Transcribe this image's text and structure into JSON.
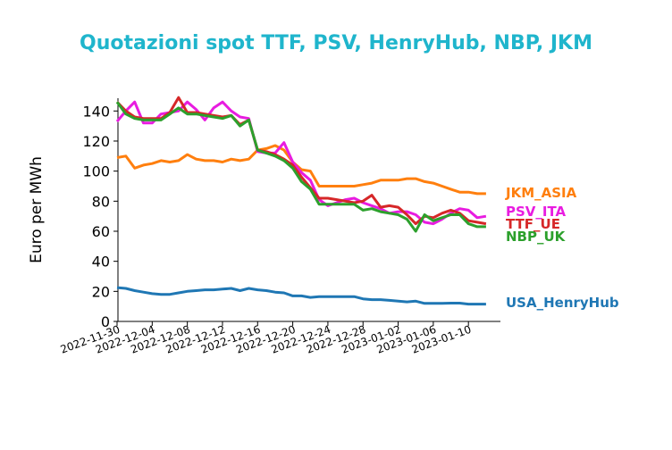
{
  "chart_data": {
    "type": "line",
    "title": "Quotazioni spot TTF, PSV, HenryHub, NBP, JKM",
    "ylabel": "Euro per MWh",
    "xlabel": "",
    "ylim": [
      0,
      150
    ],
    "yticks": [
      0,
      20,
      40,
      60,
      80,
      100,
      120,
      140
    ],
    "xtick_labels": [
      "2022-11-30",
      "2022-12-04",
      "2022-12-08",
      "2022-12-12",
      "2022-12-16",
      "2022-12-20",
      "2022-12-24",
      "2022-12-28",
      "2023-01-02",
      "2023-01-06",
      "2023-01-10"
    ],
    "xtick_days": [
      0,
      4,
      8,
      12,
      16,
      20,
      24,
      28,
      32,
      36,
      40
    ],
    "xlim_days": [
      0,
      44
    ],
    "x_start_date": "2022-11-30",
    "grid": false,
    "legend": "inline-right",
    "series": [
      {
        "name": "JKM_ASIA",
        "color": "#ff7f0e",
        "x": [
          0,
          1,
          2,
          3,
          4,
          5,
          6,
          7,
          8,
          9,
          10,
          11,
          12,
          13,
          14,
          15,
          16,
          17,
          18,
          19,
          20,
          21,
          22,
          23,
          24,
          25,
          26,
          27,
          28,
          29,
          30,
          31,
          32,
          33,
          34,
          35,
          36,
          37,
          38,
          39,
          40,
          41,
          42
        ],
        "y": [
          109,
          110,
          102,
          104,
          105,
          107,
          106,
          107,
          111,
          108,
          107,
          107,
          106,
          108,
          107,
          108,
          114,
          115,
          117,
          114,
          106,
          101,
          100,
          90,
          90,
          90,
          90,
          90,
          91,
          92,
          94,
          94,
          94,
          95,
          95,
          93,
          92,
          90,
          88,
          86,
          86,
          85,
          85
        ]
      },
      {
        "name": "PSV_ITA",
        "color": "#e81ce0",
        "x": [
          0,
          1,
          2,
          3,
          4,
          5,
          6,
          7,
          8,
          9,
          10,
          11,
          12,
          13,
          14,
          15,
          16,
          17,
          18,
          19,
          20,
          21,
          22,
          23,
          24,
          25,
          26,
          27,
          28,
          29,
          30,
          31,
          32,
          33,
          34,
          35,
          36,
          37,
          38,
          39,
          40,
          41,
          42
        ],
        "y": [
          133,
          140,
          146,
          132,
          132,
          138,
          139,
          140,
          146,
          141,
          134,
          142,
          146,
          140,
          136,
          135,
          113,
          112,
          112,
          119,
          106,
          99,
          94,
          81,
          77,
          79,
          81,
          82,
          79,
          77,
          75,
          72,
          73,
          73,
          71,
          66,
          65,
          68,
          72,
          75,
          74,
          69,
          70
        ]
      },
      {
        "name": "TTF_UE",
        "color": "#d62728",
        "x": [
          0,
          1,
          2,
          3,
          4,
          5,
          6,
          7,
          8,
          9,
          10,
          11,
          12,
          13,
          14,
          15,
          16,
          17,
          18,
          19,
          20,
          21,
          22,
          23,
          24,
          25,
          26,
          27,
          28,
          29,
          30,
          31,
          32,
          33,
          34,
          35,
          36,
          37,
          38,
          39,
          40,
          41,
          42
        ],
        "y": [
          146,
          140,
          136,
          135,
          135,
          135,
          139,
          149,
          139,
          139,
          138,
          137,
          136,
          137,
          131,
          134,
          114,
          113,
          111,
          108,
          104,
          96,
          89,
          82,
          82,
          81,
          80,
          79,
          80,
          84,
          76,
          77,
          76,
          71,
          65,
          70,
          69,
          72,
          74,
          72,
          67,
          66,
          65
        ]
      },
      {
        "name": "NBP_UK",
        "color": "#2ca02c",
        "x": [
          0,
          1,
          2,
          3,
          4,
          5,
          6,
          7,
          8,
          9,
          10,
          11,
          12,
          13,
          14,
          15,
          16,
          17,
          18,
          19,
          20,
          21,
          22,
          23,
          24,
          25,
          26,
          27,
          28,
          29,
          30,
          31,
          32,
          33,
          34,
          35,
          36,
          37,
          38,
          39,
          40,
          41,
          42
        ],
        "y": [
          146,
          138,
          135,
          134,
          134,
          134,
          138,
          142,
          138,
          138,
          137,
          136,
          135,
          137,
          130,
          134,
          114,
          112,
          110,
          107,
          102,
          93,
          88,
          78,
          78,
          78,
          78,
          78,
          74,
          75,
          73,
          72,
          71,
          68,
          60,
          71,
          67,
          69,
          71,
          71,
          65,
          63,
          63
        ]
      },
      {
        "name": "USA_HenryHub",
        "color": "#1f77b4",
        "x": [
          0,
          1,
          2,
          3,
          4,
          5,
          6,
          7,
          8,
          9,
          10,
          11,
          12,
          13,
          14,
          15,
          16,
          17,
          18,
          19,
          20,
          21,
          22,
          23,
          24,
          25,
          26,
          27,
          28,
          29,
          30,
          31,
          32,
          33,
          34,
          35,
          36,
          37,
          38,
          39,
          40,
          41,
          42
        ],
        "y": [
          22.5,
          22,
          20.5,
          19.5,
          18.5,
          18,
          18,
          19,
          20,
          20.5,
          21,
          21,
          21.5,
          22,
          20.5,
          22,
          21,
          20.5,
          19.5,
          19,
          17,
          17,
          16,
          16.5,
          16.5,
          16.5,
          16.5,
          16.5,
          15,
          14.5,
          14.5,
          14,
          13.5,
          13,
          13.5,
          12,
          12,
          12,
          12.2,
          12.2,
          11.5,
          11.5,
          11.5
        ]
      }
    ]
  }
}
